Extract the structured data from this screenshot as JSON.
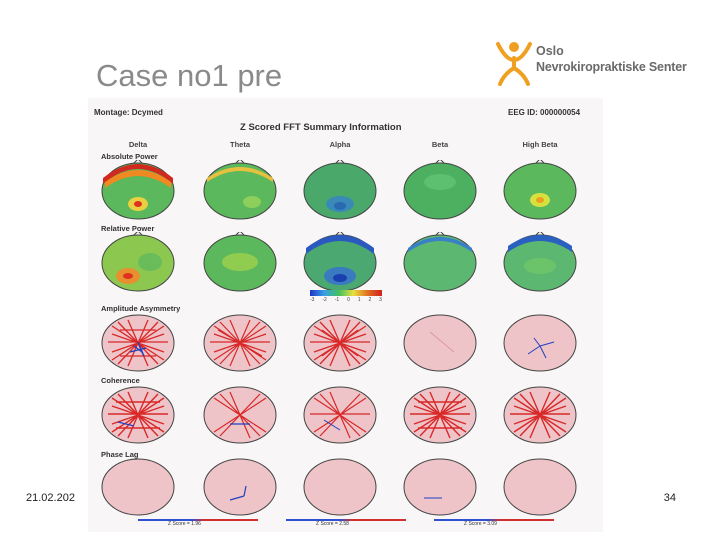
{
  "slide": {
    "title": "Case no1 pre",
    "date": "21.02.202",
    "page": "34"
  },
  "logo": {
    "line1": "Oslo",
    "line2": "Nevrokiropraktiske Senter",
    "color": "#f0a020"
  },
  "figure": {
    "montage": "Montage: Dcymed",
    "eeg_id": "EEG ID: 000000054",
    "title": "Z Scored FFT Summary Information",
    "bands": [
      "Delta",
      "Theta",
      "Alpha",
      "Beta",
      "High Beta"
    ],
    "rows": [
      "Absolute Power",
      "Relative Power",
      "Amplitude Asymmetry",
      "Coherence",
      "Phase Lag"
    ],
    "colorbar_labels": [
      "-3",
      "-2",
      "-1",
      "0",
      "1",
      "2",
      "3"
    ],
    "scale_labels": [
      "Z Score = 1.96",
      "Z Score = 2.58",
      "Z Score = 3.09"
    ]
  }
}
